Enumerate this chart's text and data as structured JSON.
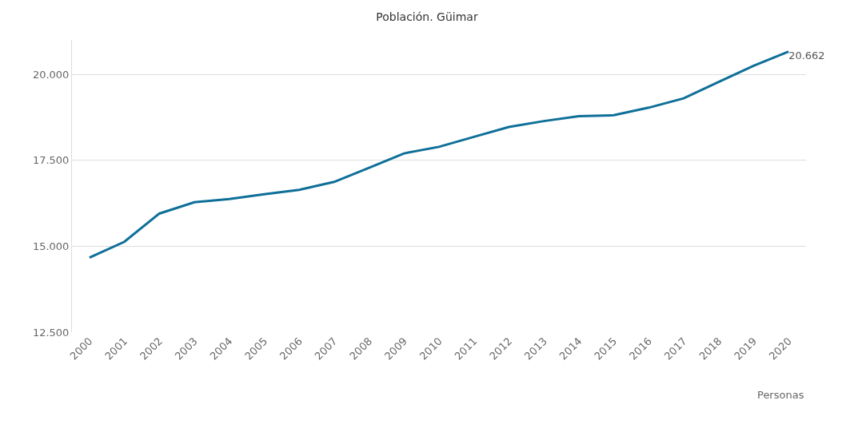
{
  "chart_data": {
    "type": "line",
    "title": "Población. Güimar",
    "categories": [
      "2000",
      "2001",
      "2002",
      "2003",
      "2004",
      "2005",
      "2006",
      "2007",
      "2008",
      "2009",
      "2010",
      "2011",
      "2012",
      "2013",
      "2014",
      "2015",
      "2016",
      "2017",
      "2018",
      "2019",
      "2020"
    ],
    "series": [
      {
        "color": "#0e6f98",
        "values": [
          14670,
          15130,
          15950,
          16280,
          16370,
          16510,
          16640,
          16870,
          17280,
          17700,
          17890,
          18180,
          18470,
          18640,
          18780,
          18810,
          19030,
          19300,
          19780,
          20250,
          20662
        ],
        "value_labels": [
          null,
          null,
          null,
          null,
          null,
          null,
          null,
          null,
          null,
          null,
          null,
          null,
          null,
          null,
          null,
          null,
          null,
          null,
          null,
          null,
          "20.662"
        ]
      }
    ],
    "ylim": [
      12500,
      21000
    ],
    "yticks": [
      {
        "value": 12500,
        "label": "12.500"
      },
      {
        "value": 15000,
        "label": "15.000"
      },
      {
        "value": 17500,
        "label": "17.500"
      },
      {
        "value": 20000,
        "label": "20.000"
      }
    ],
    "grid": "y",
    "marker": "none",
    "line_style": "solid",
    "annotations": [
      "Personas"
    ]
  }
}
